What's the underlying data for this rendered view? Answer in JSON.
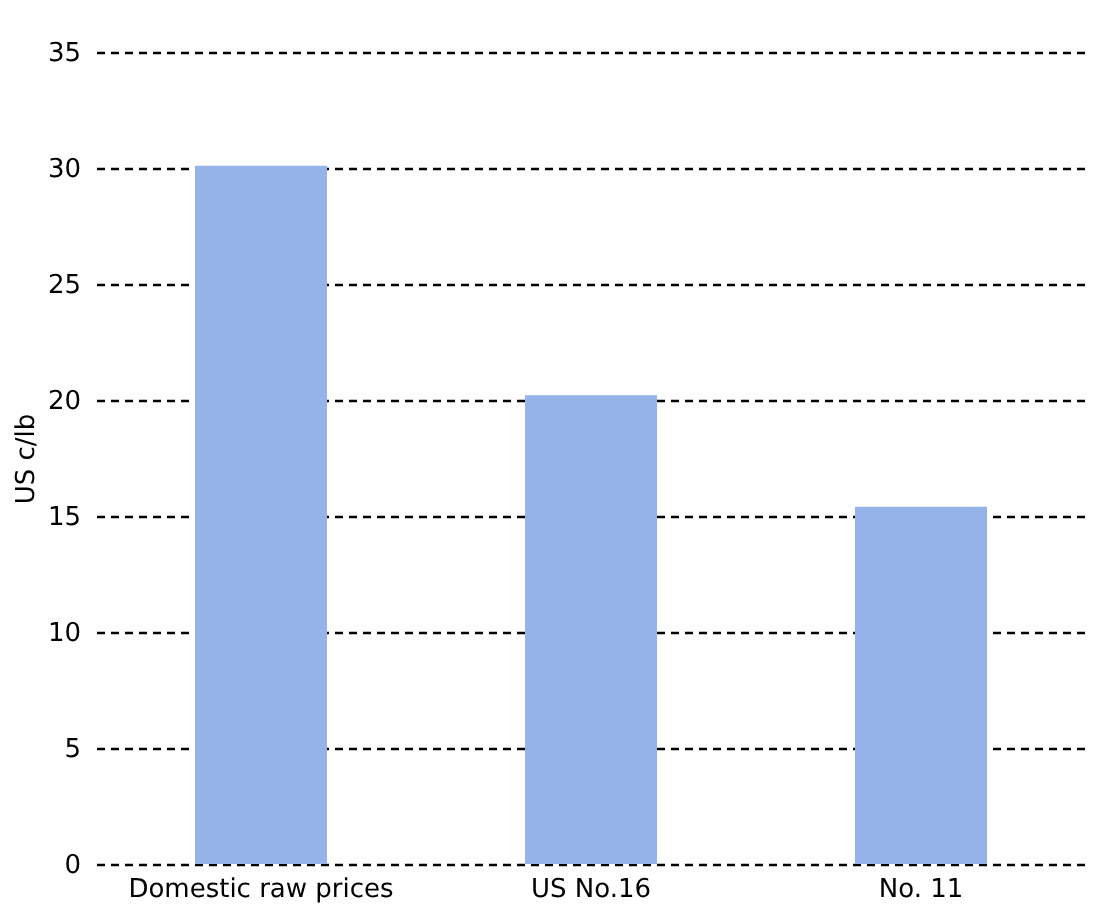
{
  "chart_data": {
    "type": "bar",
    "ylabel": "US c/lb",
    "categories": [
      "Domestic raw prices",
      "US No.16",
      "No. 11"
    ],
    "values": [
      30.1,
      20.2,
      15.4
    ],
    "color": "#95b3e8",
    "ylim": [
      0,
      35
    ],
    "yticks": [
      0,
      5,
      10,
      15,
      20,
      25,
      30,
      35
    ],
    "grid": "y"
  }
}
